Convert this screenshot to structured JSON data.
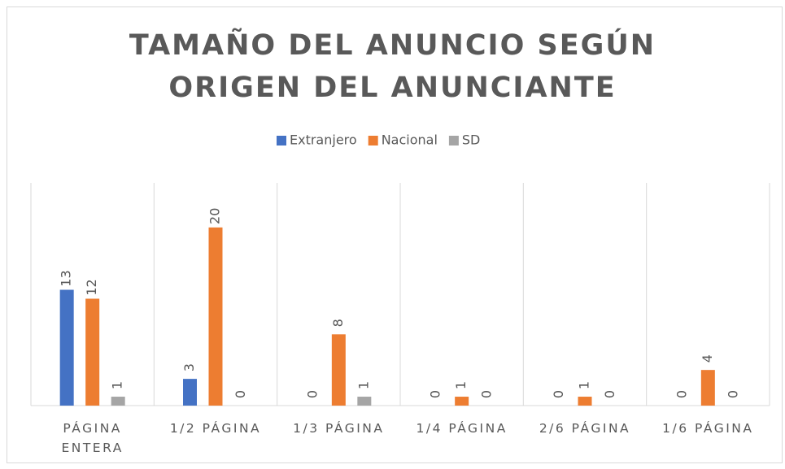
{
  "chart_data": {
    "type": "bar",
    "title": "TAMAÑO DEL ANUNCIO SEGÚN ORIGEN DEL ANUNCIANTE",
    "categories": [
      "PÁGINA ENTERA",
      "1/2 PÁGINA",
      "1/3 PÁGINA",
      "1/4 PÁGINA",
      "2/6 PÁGINA",
      "1/6 PÁGINA"
    ],
    "series": [
      {
        "name": "Extranjero",
        "color": "#4472c4",
        "values": [
          13,
          3,
          0,
          0,
          0,
          0
        ]
      },
      {
        "name": "Nacional",
        "color": "#ed7d31",
        "values": [
          12,
          20,
          8,
          1,
          1,
          4
        ]
      },
      {
        "name": "SD",
        "color": "#a5a5a5",
        "values": [
          1,
          0,
          1,
          0,
          0,
          0
        ]
      }
    ],
    "ylim": [
      0,
      25
    ],
    "legend": "top",
    "data_labels": true
  }
}
